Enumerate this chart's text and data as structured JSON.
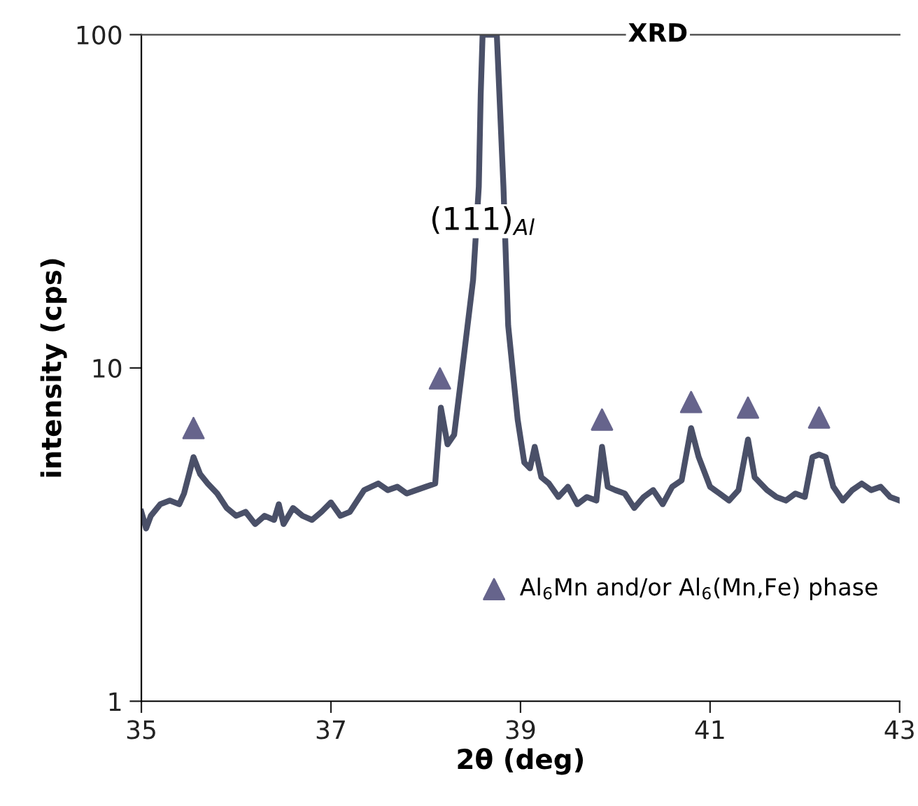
{
  "chart_data": {
    "type": "line",
    "title": "XRD",
    "xlabel": "2θ (deg)",
    "ylabel": "intensity (cps)",
    "log": "y",
    "xlim": [
      35,
      43
    ],
    "ylim": [
      1,
      100
    ],
    "xticks": [
      35,
      37,
      39,
      41,
      43
    ],
    "yticks": [
      1,
      10,
      100
    ],
    "grid": false,
    "legend": "bottom right",
    "annotations": [
      "(111)$_{Al}$"
    ],
    "series": [
      {
        "color": "#4a5068",
        "marker": "none",
        "line_style": "solid",
        "x": [
          35.0,
          35.05,
          35.1,
          35.2,
          35.3,
          35.4,
          35.45,
          35.55,
          35.62,
          35.7,
          35.8,
          35.9,
          36.0,
          36.1,
          36.2,
          36.3,
          36.4,
          36.45,
          36.5,
          36.6,
          36.7,
          36.8,
          36.9,
          37.0,
          37.1,
          37.2,
          37.35,
          37.5,
          37.6,
          37.7,
          37.8,
          37.9,
          38.0,
          38.1,
          38.16,
          38.23,
          38.3,
          38.41,
          38.5,
          38.56,
          38.58,
          38.6,
          38.75,
          38.82,
          38.87,
          38.97,
          39.04,
          39.1,
          39.15,
          39.22,
          39.3,
          39.4,
          39.5,
          39.6,
          39.7,
          39.8,
          39.86,
          39.92,
          40.0,
          40.1,
          40.2,
          40.3,
          40.4,
          40.5,
          40.6,
          40.7,
          40.8,
          40.88,
          41.0,
          41.1,
          41.2,
          41.3,
          41.4,
          41.47,
          41.6,
          41.7,
          41.8,
          41.9,
          42.0,
          42.08,
          42.15,
          42.22,
          42.3,
          42.4,
          42.5,
          42.6,
          42.7,
          42.8,
          42.9,
          43.0
        ],
        "values": [
          3.7,
          3.3,
          3.6,
          3.9,
          4.0,
          3.9,
          4.2,
          5.4,
          4.8,
          4.5,
          4.2,
          3.8,
          3.6,
          3.7,
          3.4,
          3.6,
          3.5,
          3.9,
          3.4,
          3.8,
          3.6,
          3.5,
          3.7,
          3.95,
          3.6,
          3.7,
          4.3,
          4.5,
          4.3,
          4.4,
          4.2,
          4.3,
          4.4,
          4.5,
          7.6,
          5.9,
          6.3,
          11.3,
          18.4,
          35,
          66,
          100,
          100,
          35,
          13.4,
          7.0,
          5.2,
          5.0,
          5.8,
          4.7,
          4.5,
          4.1,
          4.4,
          3.9,
          4.1,
          4.0,
          5.8,
          4.4,
          4.3,
          4.2,
          3.8,
          4.1,
          4.3,
          3.9,
          4.4,
          4.6,
          6.6,
          5.4,
          4.4,
          4.2,
          4.0,
          4.3,
          6.1,
          4.7,
          4.3,
          4.1,
          4.0,
          4.2,
          4.1,
          5.4,
          5.5,
          5.4,
          4.4,
          4.0,
          4.3,
          4.5,
          4.3,
          4.4,
          4.1,
          4.0
        ]
      },
      {
        "type": "scatter",
        "name": "Al$_{6}$Mn and/or Al$_{6}$(Mn,Fe) phase",
        "color": "#66648c",
        "marker": "triangle",
        "x": [
          35.55,
          38.15,
          39.86,
          40.8,
          41.4,
          42.15
        ],
        "values": [
          6.6,
          9.3,
          7.0,
          7.9,
          7.6,
          7.1
        ]
      }
    ]
  }
}
